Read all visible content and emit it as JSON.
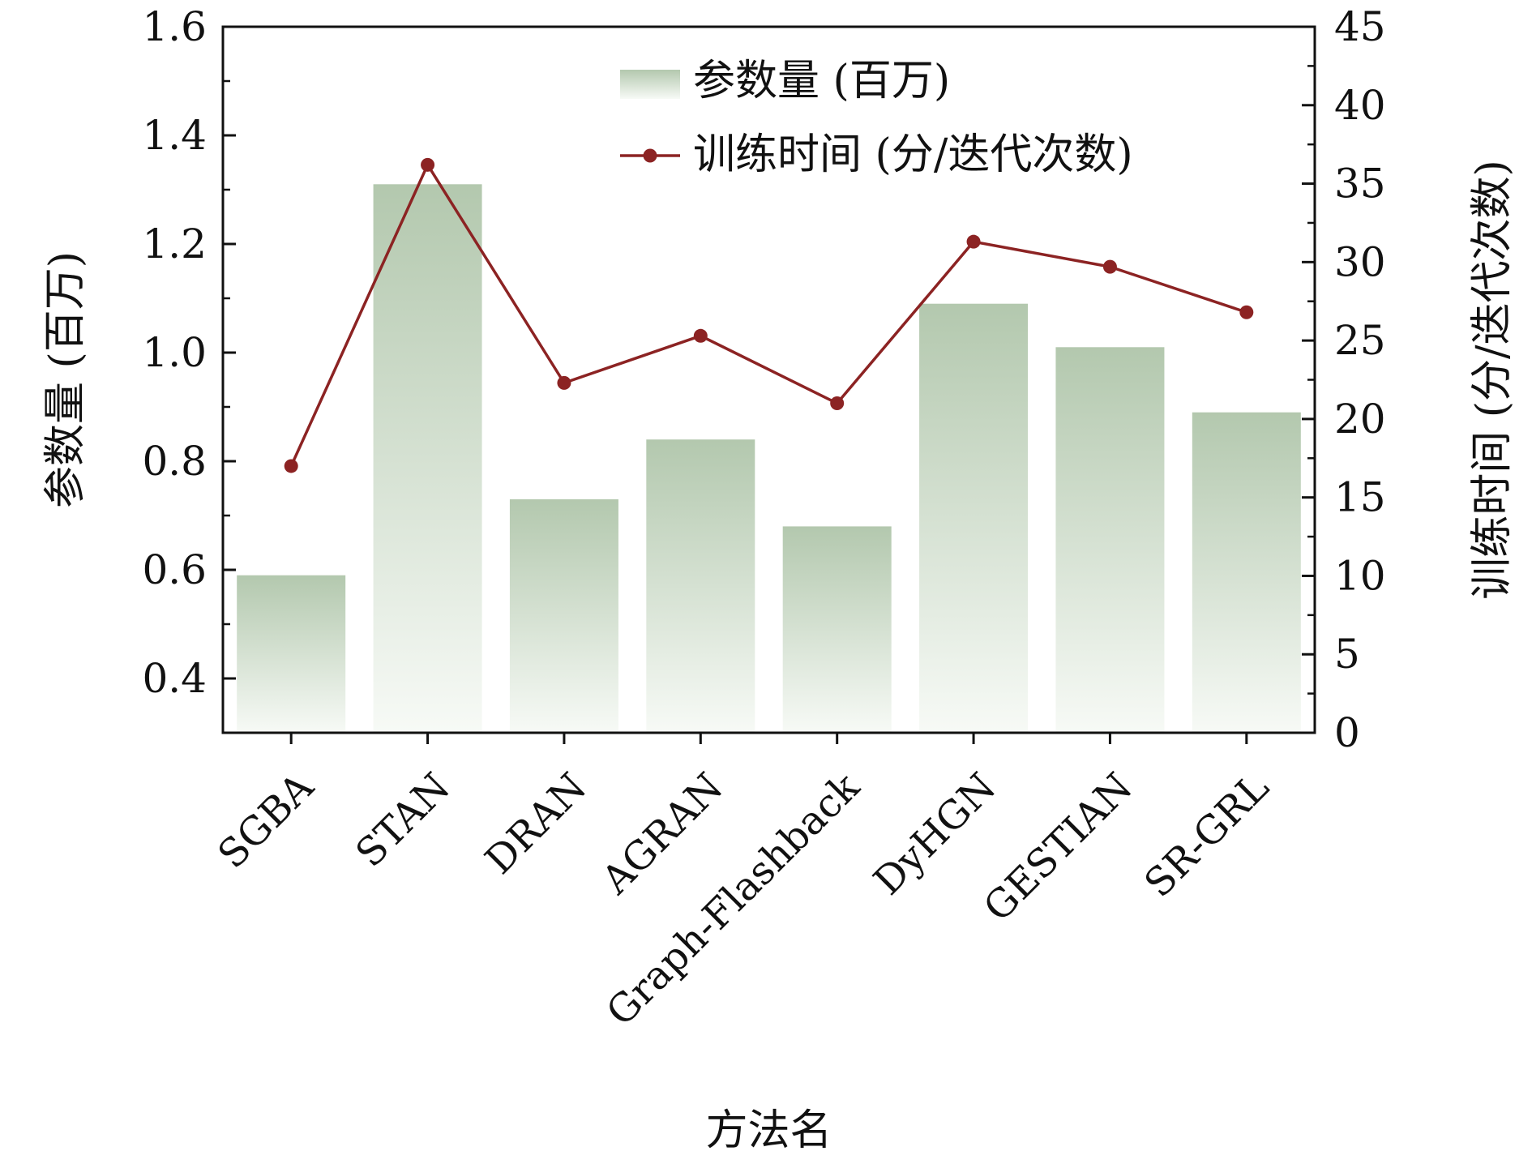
{
  "chart_data": {
    "type": "bar",
    "categories": [
      "SGBA",
      "STAN",
      "DRAN",
      "AGRAN",
      "Graph-Flashback",
      "DyHGN",
      "GESTIAN",
      "SR-GRL"
    ],
    "series": [
      {
        "name": "参数量 (百万)",
        "type": "bar",
        "axis": "left",
        "values": [
          0.59,
          1.31,
          0.73,
          0.84,
          0.68,
          1.09,
          1.01,
          0.89
        ]
      },
      {
        "name": "训练时间 (分/迭代次数)",
        "type": "line",
        "axis": "right",
        "values": [
          17.0,
          36.2,
          22.3,
          25.3,
          21.0,
          31.3,
          29.7,
          26.8
        ]
      }
    ],
    "xlabel": "方法名",
    "ylabel": "参数量 (百万)",
    "y2label": "训练时间 (分/迭代次数)",
    "ylim": [
      0.3,
      1.6
    ],
    "y2lim": [
      0,
      45
    ],
    "yticks": [
      "0.4",
      "0.6",
      "0.8",
      "1.0",
      "1.2",
      "1.4",
      "1.6"
    ],
    "y2ticks": [
      "0",
      "5",
      "10",
      "15",
      "20",
      "25",
      "30",
      "35",
      "40",
      "45"
    ],
    "legend_position": "top-center",
    "grid": false,
    "colors": {
      "bar_top": "#b3c8ae",
      "bar_bottom": "#f7faf6",
      "line": "#8c2323"
    }
  }
}
